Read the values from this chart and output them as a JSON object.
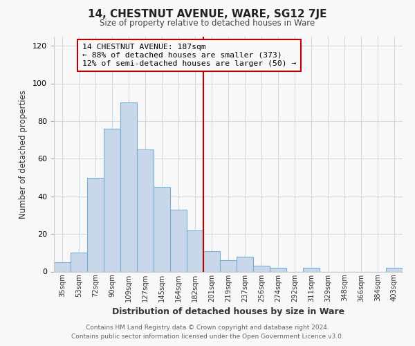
{
  "title": "14, CHESTNUT AVENUE, WARE, SG12 7JE",
  "subtitle": "Size of property relative to detached houses in Ware",
  "xlabel": "Distribution of detached houses by size in Ware",
  "ylabel": "Number of detached properties",
  "footer_line1": "Contains HM Land Registry data © Crown copyright and database right 2024.",
  "footer_line2": "Contains public sector information licensed under the Open Government Licence v3.0.",
  "bar_labels": [
    "35sqm",
    "53sqm",
    "72sqm",
    "90sqm",
    "109sqm",
    "127sqm",
    "145sqm",
    "164sqm",
    "182sqm",
    "201sqm",
    "219sqm",
    "237sqm",
    "256sqm",
    "274sqm",
    "292sqm",
    "311sqm",
    "329sqm",
    "348sqm",
    "366sqm",
    "384sqm",
    "403sqm"
  ],
  "bar_values": [
    5,
    10,
    50,
    76,
    90,
    65,
    45,
    33,
    22,
    11,
    6,
    8,
    3,
    2,
    0,
    2,
    0,
    0,
    0,
    0,
    2
  ],
  "bar_color": "#c8d8ea",
  "bar_edgecolor": "#7aaed0",
  "reference_line_x": 8.5,
  "reference_line_color": "#bb0000",
  "annotation_title": "14 CHESTNUT AVENUE: 187sqm",
  "annotation_line1": "← 88% of detached houses are smaller (373)",
  "annotation_line2": "12% of semi-detached houses are larger (50) →",
  "annotation_box_edgecolor": "#bb0000",
  "ylim": [
    0,
    125
  ],
  "yticks": [
    0,
    20,
    40,
    60,
    80,
    100,
    120
  ],
  "background_color": "#f8f8f8",
  "grid_color": "#d0dae4"
}
